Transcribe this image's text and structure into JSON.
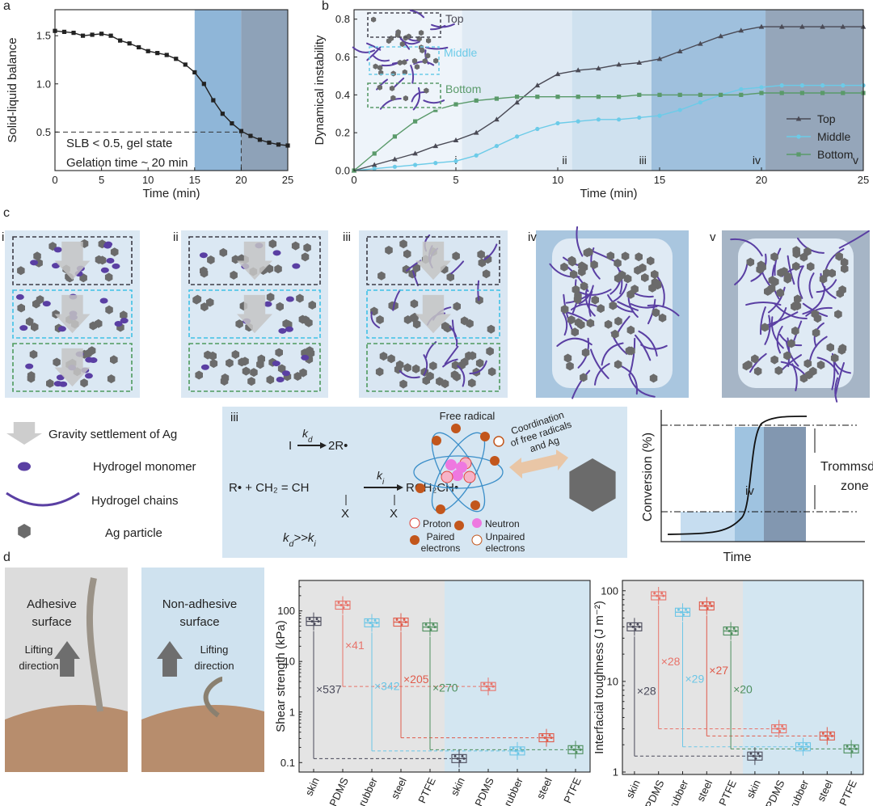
{
  "panel_labels": [
    "a",
    "b",
    "c",
    "d"
  ],
  "chart_data": [
    {
      "type": "line",
      "xlabel": "Time (min)",
      "ylabel": "Solid-liquid balance",
      "color": "#222222",
      "x": [
        0,
        1,
        2,
        3,
        4,
        5,
        6,
        7,
        8,
        9,
        10,
        11,
        12,
        13,
        14,
        15,
        16,
        17,
        18,
        19,
        20,
        21,
        22,
        23,
        24,
        25
      ],
      "values": [
        1.55,
        1.54,
        1.53,
        1.5,
        1.51,
        1.52,
        1.5,
        1.45,
        1.42,
        1.38,
        1.34,
        1.32,
        1.3,
        1.26,
        1.2,
        1.12,
        1.0,
        0.83,
        0.69,
        0.59,
        0.51,
        0.46,
        0.42,
        0.39,
        0.37,
        0.36
      ],
      "xlim": [
        0,
        25
      ],
      "ylim": [
        0.1,
        1.77
      ],
      "xticks": [
        0,
        5,
        10,
        15,
        20,
        25
      ],
      "yticks": [
        0.5,
        {
          "value": 1,
          "label": "1.0"
        },
        1.5
      ],
      "threshold": 0.5,
      "annotations": [
        "SLB < 0.5, gel state",
        "Gelation time ~ 20 min"
      ],
      "bands": [
        {
          "range": [
            15,
            20
          ],
          "color": "#8fb6d8"
        },
        {
          "range": [
            20,
            25
          ],
          "color": "#8ea2b8"
        }
      ]
    },
    {
      "type": "line",
      "xlabel": "Time (min)",
      "ylabel": "Dynamical instability",
      "legend": "right",
      "x": [
        0,
        1,
        2,
        3,
        4,
        5,
        6,
        7,
        8,
        9,
        10,
        11,
        12,
        13,
        14,
        15,
        16,
        17,
        18,
        19,
        20,
        21,
        22,
        23,
        24,
        25
      ],
      "series": [
        {
          "name": "Top",
          "color": "#4a4a55",
          "marker": "triangle",
          "values": [
            0,
            0.03,
            0.06,
            0.09,
            0.13,
            0.16,
            0.2,
            0.27,
            0.36,
            0.45,
            0.51,
            0.53,
            0.54,
            0.56,
            0.57,
            0.59,
            0.63,
            0.67,
            0.71,
            0.74,
            0.76,
            0.76,
            0.76,
            0.76,
            0.76,
            0.76
          ]
        },
        {
          "name": "Middle",
          "color": "#6ccbe8",
          "marker": "circle",
          "values": [
            0,
            0.01,
            0.02,
            0.03,
            0.04,
            0.05,
            0.08,
            0.13,
            0.18,
            0.22,
            0.25,
            0.26,
            0.27,
            0.27,
            0.28,
            0.29,
            0.32,
            0.36,
            0.4,
            0.43,
            0.44,
            0.45,
            0.45,
            0.45,
            0.45,
            0.45
          ]
        },
        {
          "name": "Bottom",
          "color": "#5a9a6a",
          "marker": "square",
          "values": [
            0,
            0.09,
            0.18,
            0.26,
            0.32,
            0.35,
            0.37,
            0.38,
            0.39,
            0.39,
            0.39,
            0.39,
            0.39,
            0.39,
            0.4,
            0.4,
            0.4,
            0.4,
            0.4,
            0.4,
            0.41,
            0.41,
            0.41,
            0.41,
            0.41,
            0.41
          ]
        }
      ],
      "xlim": [
        0,
        25
      ],
      "ylim": [
        0,
        0.85
      ],
      "xticks": [
        0,
        5,
        10,
        15,
        20,
        25
      ],
      "yticks": [
        {
          "value": 0,
          "label": "0.0"
        },
        0.2,
        0.4,
        0.6,
        0.8
      ],
      "bands": [
        {
          "range": [
            0,
            5.3
          ],
          "color": "#eef4fa",
          "label": "i"
        },
        {
          "range": [
            5.3,
            10.7
          ],
          "color": "#dfeaf4",
          "label": "ii"
        },
        {
          "range": [
            10.7,
            14.6
          ],
          "color": "#cfe1ef",
          "label": "iii"
        },
        {
          "range": [
            14.6,
            20.2
          ],
          "color": "#9fc0dd",
          "label": "iv"
        },
        {
          "range": [
            20.2,
            25
          ],
          "color": "#95a6ba",
          "label": "v"
        }
      ],
      "inset_labels": [
        "Top",
        "Middle",
        "Bottom"
      ]
    },
    {
      "type": "box",
      "ylabel": "Shear strength (kPa)",
      "log": true,
      "categories": [
        "skin",
        "PDMS",
        "rubber",
        "steel",
        "PTFE",
        "skin",
        "PDMS",
        "rubber",
        "steel",
        "PTFE"
      ],
      "values": [
        62,
        130,
        58,
        60,
        48,
        0.12,
        3.2,
        0.17,
        0.31,
        0.18
      ],
      "colors": [
        "#4a4a5a",
        "#e8736a",
        "#6cc6e6",
        "#e05b4b",
        "#4e8f5e",
        "#4a4a5a",
        "#e8736a",
        "#6cc6e6",
        "#e05b4b",
        "#4e8f5e"
      ],
      "groups": [
        "#e4e4e4",
        "#d3e6f1"
      ],
      "ylim": [
        0.065,
        400
      ],
      "yticks": [
        0.1,
        1,
        10,
        100
      ],
      "ratios": [
        "×537",
        "×41",
        "×342",
        "×205",
        "×270"
      ]
    },
    {
      "type": "box",
      "ylabel": "Interfacial toughness (J m⁻²)",
      "log": true,
      "categories": [
        "skin",
        "PDMS",
        "rubber",
        "steel",
        "PTFE",
        "skin",
        "PDMS",
        "rubber",
        "steel",
        "PTFE"
      ],
      "values": [
        40,
        88,
        58,
        68,
        36,
        1.5,
        3.0,
        1.9,
        2.5,
        1.8
      ],
      "colors": [
        "#4a4a5a",
        "#e8736a",
        "#6cc6e6",
        "#e05b4b",
        "#4e8f5e",
        "#4a4a5a",
        "#e8736a",
        "#6cc6e6",
        "#e05b4b",
        "#4e8f5e"
      ],
      "groups": [
        "#e4e4e4",
        "#d3e6f1"
      ],
      "ylim": [
        0.94,
        130
      ],
      "yticks": [
        1,
        10,
        100
      ],
      "ratios": [
        "×28",
        "×28",
        "×29",
        "×27",
        "×20"
      ]
    }
  ],
  "stages": [
    "i",
    "ii",
    "iii",
    "iv",
    "v"
  ],
  "legend": [
    "Gravity settlement of Ag",
    "Hydrogel monomer",
    "Hydrogel chains",
    "Ag particle"
  ],
  "mechanism": {
    "stage": "iii",
    "initiator": "I",
    "kd": {
      "k": "k",
      "sub": "d"
    },
    "radical": "2R•",
    "left": "R• + CH₂ = CH",
    "ki": {
      "k": "k",
      "sub": "i"
    },
    "right": "RCH₂CH•",
    "substituent": [
      "X",
      "X"
    ],
    "relation": {
      "k1": "k",
      "s1": "d",
      "op": ">>",
      "k2": "k",
      "s2": "i"
    },
    "free_radical": "Free radical",
    "coordination": [
      "Coordination",
      "of free radicals",
      "and Ag"
    ],
    "proton": "Proton",
    "neutron": "Neutron",
    "paired": [
      "Paired",
      "electrons"
    ],
    "unpaired": [
      "Unpaired",
      "electrons"
    ]
  },
  "conversion": {
    "ylabel": "Conversion (%)",
    "xlabel": "Time",
    "zone": [
      "Trommsdorff",
      "zone"
    ],
    "stage": "iv"
  },
  "photos": [
    {
      "title": [
        "Adhesive",
        "surface"
      ],
      "arrow": [
        "Lifting",
        "direction"
      ]
    },
    {
      "title": [
        "Non-adhesive",
        "surface"
      ],
      "arrow": [
        "Lifting",
        "direction"
      ]
    }
  ]
}
